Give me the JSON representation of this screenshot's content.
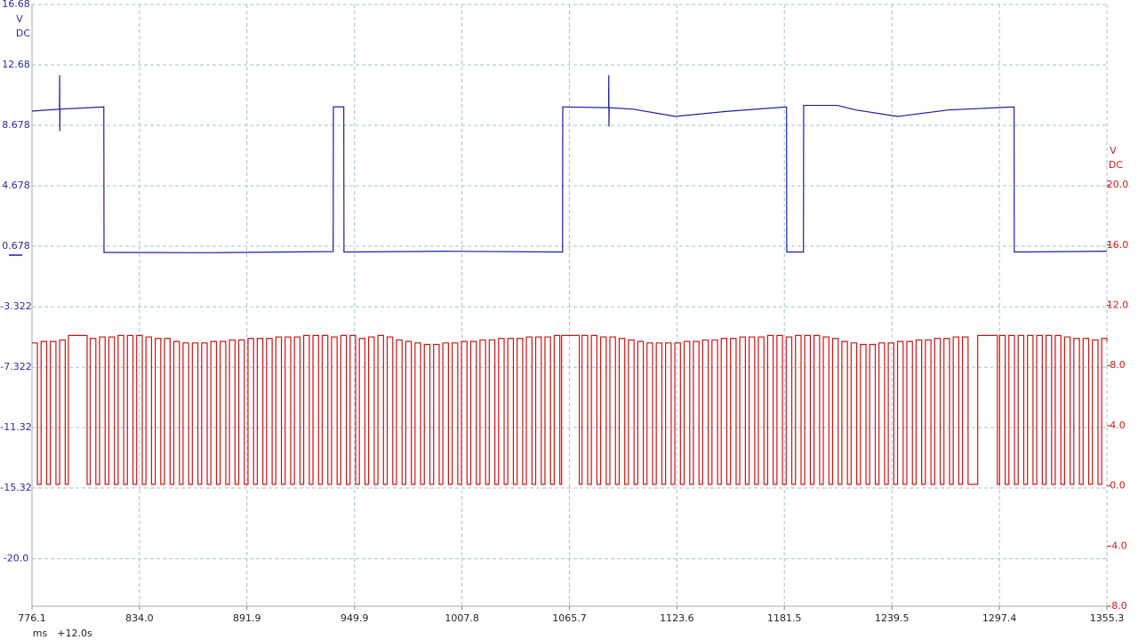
{
  "chart_data": {
    "type": "line",
    "grid": true,
    "xlim": [
      776.1,
      1355.3
    ],
    "xticks": [
      776.1,
      {
        "value": 834.0,
        "label": "834.0"
      },
      891.9,
      949.9,
      1007.8,
      1065.7,
      1123.6,
      1181.5,
      1239.5,
      1297.4,
      1355.3
    ],
    "xlabel": "ms",
    "x_offset_label": "+12.0s",
    "ylim": [
      -23.14,
      16.68
    ],
    "yticks": [
      16.68,
      12.68,
      8.678,
      4.678,
      0.678,
      -3.322,
      -7.322,
      -11.32,
      -15.32,
      {
        "value": -20,
        "label": "-20.0"
      }
    ],
    "ylabel_lines": [
      "V",
      "DC"
    ],
    "y_color": "#2a2aa8",
    "y2lim": [
      -8.0,
      32.0
    ],
    "y2ticks": [
      {
        "value": 20,
        "label": "20.0"
      },
      {
        "value": 16,
        "label": "16.0"
      },
      {
        "value": 12,
        "label": "12.0"
      },
      {
        "value": 8,
        "label": "8.0"
      },
      {
        "value": 4,
        "label": "4.0"
      },
      {
        "value": 0,
        "label": "0.0"
      },
      {
        "value": -4,
        "label": "-4.0"
      },
      {
        "value": -8,
        "label": "-8.0"
      }
    ],
    "y2label_lines": [
      "V",
      "DC"
    ],
    "y2_color": "#d01818",
    "series": [
      {
        "color": "#1c1ca0",
        "step": false,
        "x": [
          776.1,
          790.9,
          791.0,
          791.1,
          791.2,
          814.8,
          814.9,
          870.0,
          938.4,
          938.5,
          944.1,
          944.2,
          1000.0,
          1062.0,
          1062.1,
          1086.8,
          1086.9,
          1087.0,
          1087.1,
          1100.0,
          1122.9,
          1150.0,
          1182.7,
          1182.8,
          1191.8,
          1191.9,
          1210.0,
          1220.0,
          1242.6,
          1270.0,
          1305.3,
          1305.4,
          1355.3
        ],
        "values": [
          9.62,
          9.75,
          12.0,
          8.3,
          9.75,
          9.9,
          0.27,
          0.25,
          0.33,
          9.9,
          9.9,
          0.3,
          0.35,
          0.3,
          9.9,
          9.85,
          12.0,
          8.6,
          9.85,
          9.75,
          9.27,
          9.6,
          9.9,
          0.3,
          0.3,
          10.0,
          10.0,
          9.7,
          9.27,
          9.7,
          9.9,
          0.3,
          0.35
        ]
      },
      {
        "color": "#cc1414",
        "axis": "y2",
        "step": true,
        "x": [
          776.1,
          779.0,
          781.0,
          784.0,
          786.0,
          789.0,
          791.0,
          794.0,
          795.7,
          805.8,
          807.5,
          810.5,
          812.5,
          815.5,
          817.5,
          820.5,
          822.5,
          825.5,
          827.5,
          830.5,
          832.5,
          835.5,
          837.5,
          840.5,
          842.5,
          845.5,
          847.5,
          850.5,
          852.5,
          855.5,
          857.5,
          860.5,
          862.5,
          865.5,
          867.5,
          870.5,
          872.5,
          875.5,
          877.5,
          880.5,
          882.5,
          885.5,
          887.5,
          890.5,
          892.5,
          895.5,
          897.5,
          900.5,
          902.5,
          905.5,
          907.5,
          910.5,
          912.5,
          915.5,
          917.5,
          920.5,
          922.5,
          925.5,
          927.5,
          930.5,
          932.5,
          935.5,
          937.5,
          940.5,
          942.5,
          945.5,
          947.5,
          950.5,
          952.5,
          955.5,
          957.5,
          960.5,
          962.5,
          965.5,
          967.5,
          970.5,
          972.5,
          975.5,
          977.5,
          980.5,
          982.5,
          985.5,
          987.5,
          990.5,
          992.5,
          995.5,
          997.5,
          1000.5,
          1002.5,
          1005.5,
          1007.5,
          1010.5,
          1012.5,
          1015.5,
          1017.5,
          1020.5,
          1022.5,
          1025.5,
          1027.5,
          1030.5,
          1032.5,
          1035.5,
          1037.5,
          1040.5,
          1042.5,
          1045.5,
          1047.5,
          1050.5,
          1052.5,
          1055.5,
          1057.5,
          1060.5,
          1061.5,
          1071.0,
          1072.5,
          1075.5,
          1077.5,
          1080.5,
          1082.5,
          1085.5,
          1087.5,
          1090.5,
          1092.5,
          1095.5,
          1097.5,
          1100.5,
          1102.5,
          1105.5,
          1107.5,
          1110.5,
          1112.5,
          1115.5,
          1117.5,
          1120.5,
          1122.5,
          1125.5,
          1127.5,
          1130.5,
          1132.5,
          1135.5,
          1137.5,
          1140.5,
          1142.5,
          1145.5,
          1147.5,
          1150.5,
          1152.5,
          1155.5,
          1157.5,
          1160.5,
          1162.5,
          1165.5,
          1167.5,
          1170.5,
          1172.5,
          1175.5,
          1177.5,
          1180.5,
          1182.5,
          1185.5,
          1187.5,
          1190.5,
          1192.5,
          1195.5,
          1197.5,
          1200.5,
          1202.5,
          1205.5,
          1207.5,
          1210.5,
          1212.5,
          1215.5,
          1217.5,
          1220.5,
          1222.5,
          1225.5,
          1227.5,
          1230.5,
          1232.5,
          1235.5,
          1237.5,
          1240.5,
          1242.5,
          1245.5,
          1247.5,
          1250.5,
          1252.5,
          1255.5,
          1257.5,
          1260.5,
          1262.5,
          1265.5,
          1267.5,
          1270.5,
          1272.5,
          1275.5,
          1277.5,
          1280.5,
          1285.7,
          1296.3,
          1297.5,
          1300.5,
          1302.5,
          1305.5,
          1307.5,
          1310.5,
          1312.5,
          1315.5,
          1317.5,
          1320.5,
          1322.5,
          1325.5,
          1327.5,
          1330.5,
          1332.5,
          1335.5,
          1337.5,
          1340.5,
          1342.5,
          1345.5,
          1347.5,
          1350.5,
          1352.5,
          1355.3
        ],
        "values": [
          9.5,
          0.1,
          9.6,
          0.1,
          9.6,
          0.1,
          9.7,
          0.1,
          10.0,
          0.1,
          9.8,
          0.1,
          9.9,
          0.1,
          9.9,
          0.1,
          10.0,
          0.1,
          10.0,
          0.1,
          10.0,
          0.1,
          9.9,
          0.1,
          9.8,
          0.1,
          9.8,
          0.1,
          9.6,
          0.1,
          9.5,
          0.1,
          9.5,
          0.1,
          9.5,
          0.1,
          9.6,
          0.1,
          9.6,
          0.1,
          9.7,
          0.1,
          9.7,
          0.1,
          9.8,
          0.1,
          9.8,
          0.1,
          9.8,
          0.1,
          9.9,
          0.1,
          9.9,
          0.1,
          9.9,
          0.1,
          10.0,
          0.1,
          10.0,
          0.1,
          10.0,
          0.1,
          9.9,
          0.1,
          10.0,
          0.1,
          10.0,
          0.1,
          9.8,
          0.1,
          9.9,
          0.1,
          10.0,
          0.1,
          9.9,
          0.1,
          9.7,
          0.1,
          9.6,
          0.1,
          9.5,
          0.1,
          9.4,
          0.1,
          9.4,
          0.1,
          9.5,
          0.1,
          9.5,
          0.1,
          9.6,
          0.1,
          9.6,
          0.1,
          9.7,
          0.1,
          9.7,
          0.1,
          9.8,
          0.1,
          9.8,
          0.1,
          9.8,
          0.1,
          9.9,
          0.1,
          9.9,
          0.1,
          9.9,
          0.1,
          10.0,
          0.1,
          10.0,
          0.1,
          10.0,
          0.1,
          10.0,
          0.1,
          9.9,
          0.1,
          9.9,
          0.1,
          9.8,
          0.1,
          9.7,
          0.1,
          9.6,
          0.1,
          9.5,
          0.1,
          9.5,
          0.1,
          9.5,
          0.1,
          9.5,
          0.1,
          9.6,
          0.1,
          9.6,
          0.1,
          9.7,
          0.1,
          9.7,
          0.1,
          9.8,
          0.1,
          9.8,
          0.1,
          9.9,
          0.1,
          9.9,
          0.1,
          9.9,
          0.1,
          10.0,
          0.1,
          10.0,
          0.1,
          9.9,
          0.1,
          10.0,
          0.1,
          10.0,
          0.1,
          10.0,
          0.1,
          9.9,
          0.1,
          9.8,
          0.1,
          9.6,
          0.1,
          9.5,
          0.1,
          9.4,
          0.1,
          9.4,
          0.1,
          9.5,
          0.1,
          9.5,
          0.1,
          9.6,
          0.1,
          9.6,
          0.1,
          9.7,
          0.1,
          9.7,
          0.1,
          9.8,
          0.1,
          9.8,
          0.1,
          9.9,
          0.1,
          9.9,
          0.1,
          10.0,
          0.1,
          10.0,
          0.1,
          10.0,
          0.1,
          10.0,
          0.1,
          10.0,
          0.1,
          10.0,
          0.1,
          10.0,
          0.1,
          10.0,
          0.1,
          9.9,
          0.1,
          9.8,
          0.1,
          9.8,
          0.1,
          9.7,
          0.1,
          9.8,
          9.6
        ]
      }
    ]
  }
}
